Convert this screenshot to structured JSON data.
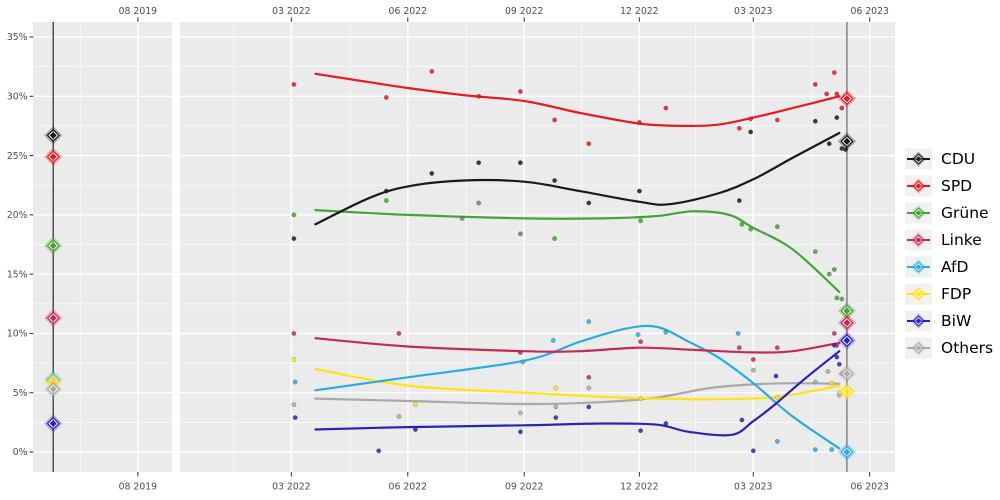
{
  "chart_data": {
    "type": "line",
    "title": "",
    "xlabel": "",
    "ylabel": "",
    "ylim": [
      0,
      35
    ],
    "grid": true,
    "legend_position": "right",
    "panels": [
      {
        "start": "2019-05-10",
        "end": "2019-08-28"
      },
      {
        "start": "2021-12-03",
        "end": "2023-06-21"
      }
    ],
    "x_axis": {
      "ticks": [
        {
          "label": "08 2019",
          "date": "2019-08-01"
        },
        {
          "label": "03 2022",
          "date": "2022-03-01"
        },
        {
          "label": "06 2022",
          "date": "2022-06-01"
        },
        {
          "label": "09 2022",
          "date": "2022-09-01"
        },
        {
          "label": "12 2022",
          "date": "2022-12-01"
        },
        {
          "label": "03 2023",
          "date": "2023-03-01"
        },
        {
          "label": "06 2023",
          "date": "2023-06-01"
        }
      ]
    },
    "y_axis": {
      "ticks": [
        {
          "label": "0%",
          "value": 0
        },
        {
          "label": "5%",
          "value": 5
        },
        {
          "label": "10%",
          "value": 10
        },
        {
          "label": "15%",
          "value": 15
        },
        {
          "label": "20%",
          "value": 20
        },
        {
          "label": "25%",
          "value": 25
        },
        {
          "label": "30%",
          "value": 30
        },
        {
          "label": "35%",
          "value": 35
        }
      ]
    },
    "elections": [
      {
        "name": "election-2019",
        "date": "2019-05-26",
        "results": [
          [
            "CDU",
            26.7
          ],
          [
            "SPD",
            24.9
          ],
          [
            "Grüne",
            17.4
          ],
          [
            "Linke",
            11.3
          ],
          [
            "AfD",
            6.1
          ],
          [
            "FDP",
            5.9
          ],
          [
            "Others",
            5.3
          ],
          [
            "BiW",
            2.4
          ]
        ]
      },
      {
        "name": "election-2023",
        "date": "2023-05-14",
        "results": [
          [
            "SPD",
            29.8
          ],
          [
            "CDU",
            26.2
          ],
          [
            "Grüne",
            11.9
          ],
          [
            "Linke",
            10.9
          ],
          [
            "BiW",
            9.4
          ],
          [
            "Others",
            6.6
          ],
          [
            "FDP",
            5.1
          ],
          [
            "AfD",
            0.0
          ]
        ]
      }
    ],
    "series": [
      {
        "name": "CDU",
        "color": "#1a1a1a",
        "line": [
          [
            "2022-03-20",
            19.2
          ],
          [
            "2022-05-01",
            21.4
          ],
          [
            "2022-06-01",
            22.4
          ],
          [
            "2022-07-15",
            22.9
          ],
          [
            "2022-09-01",
            22.8
          ],
          [
            "2022-10-15",
            22.0
          ],
          [
            "2022-12-01",
            21.1
          ],
          [
            "2022-12-25",
            20.9
          ],
          [
            "2023-02-01",
            21.8
          ],
          [
            "2023-03-01",
            23.0
          ],
          [
            "2023-04-01",
            24.8
          ],
          [
            "2023-05-08",
            26.9
          ]
        ],
        "points": [
          [
            "2022-03-03",
            18.0
          ],
          [
            "2022-05-15",
            22.0
          ],
          [
            "2022-06-20",
            23.5
          ],
          [
            "2022-07-27",
            24.4
          ],
          [
            "2022-08-29",
            24.4
          ],
          [
            "2022-09-25",
            22.9
          ],
          [
            "2022-10-22",
            21.0
          ],
          [
            "2022-12-01",
            22.0
          ],
          [
            "2023-02-18",
            21.2
          ],
          [
            "2023-02-27",
            27.0
          ],
          [
            "2023-04-19",
            27.9
          ],
          [
            "2023-04-30",
            26.0
          ],
          [
            "2023-05-06",
            28.2
          ],
          [
            "2023-05-10",
            25.6
          ],
          [
            "2023-05-13",
            25.5
          ]
        ]
      },
      {
        "name": "SPD",
        "color": "#e8191f",
        "line": [
          [
            "2022-03-20",
            31.9
          ],
          [
            "2022-05-01",
            31.2
          ],
          [
            "2022-06-01",
            30.7
          ],
          [
            "2022-07-15",
            30.1
          ],
          [
            "2022-09-01",
            29.6
          ],
          [
            "2022-10-15",
            28.6
          ],
          [
            "2022-12-01",
            27.7
          ],
          [
            "2023-01-05",
            27.5
          ],
          [
            "2023-02-01",
            27.6
          ],
          [
            "2023-03-01",
            28.2
          ],
          [
            "2023-04-01",
            29.0
          ],
          [
            "2023-05-08",
            30.0
          ]
        ],
        "points": [
          [
            "2022-03-03",
            31.0
          ],
          [
            "2022-05-15",
            29.9
          ],
          [
            "2022-06-20",
            32.1
          ],
          [
            "2022-07-27",
            30.0
          ],
          [
            "2022-08-29",
            30.4
          ],
          [
            "2022-09-25",
            28.0
          ],
          [
            "2022-10-22",
            26.0
          ],
          [
            "2022-12-01",
            27.8
          ],
          [
            "2022-12-22",
            29.0
          ],
          [
            "2023-02-18",
            27.3
          ],
          [
            "2023-02-27",
            28.1
          ],
          [
            "2023-03-20",
            28.0
          ],
          [
            "2023-04-19",
            31.0
          ],
          [
            "2023-04-28",
            30.2
          ],
          [
            "2023-05-04",
            32.0
          ],
          [
            "2023-05-06",
            30.2
          ],
          [
            "2023-05-10",
            29.0
          ]
        ]
      },
      {
        "name": "Grüne",
        "color": "#44a338",
        "line": [
          [
            "2022-03-20",
            20.4
          ],
          [
            "2022-06-01",
            20.0
          ],
          [
            "2022-09-01",
            19.7
          ],
          [
            "2022-11-01",
            19.7
          ],
          [
            "2022-12-15",
            19.9
          ],
          [
            "2023-01-12",
            20.3
          ],
          [
            "2023-02-10",
            20.0
          ],
          [
            "2023-03-01",
            18.9
          ],
          [
            "2023-04-01",
            17.1
          ],
          [
            "2023-05-08",
            13.5
          ]
        ],
        "points": [
          [
            "2022-03-03",
            20.0
          ],
          [
            "2022-05-15",
            21.2
          ],
          [
            "2022-07-14",
            19.7
          ],
          [
            "2022-07-27",
            21.0
          ],
          [
            "2022-08-29",
            18.4
          ],
          [
            "2022-09-25",
            18.0
          ],
          [
            "2022-12-02",
            19.5
          ],
          [
            "2023-02-20",
            19.2
          ],
          [
            "2023-02-27",
            18.8
          ],
          [
            "2023-03-20",
            19.0
          ],
          [
            "2023-04-19",
            16.9
          ],
          [
            "2023-04-30",
            15.0
          ],
          [
            "2023-05-04",
            15.4
          ],
          [
            "2023-05-06",
            13.0
          ],
          [
            "2023-05-10",
            12.9
          ]
        ]
      },
      {
        "name": "Linke",
        "color": "#c22a56",
        "line": [
          [
            "2022-03-20",
            9.6
          ],
          [
            "2022-06-01",
            8.9
          ],
          [
            "2022-09-01",
            8.5
          ],
          [
            "2022-10-15",
            8.5
          ],
          [
            "2022-12-01",
            8.8
          ],
          [
            "2023-01-15",
            8.6
          ],
          [
            "2023-03-01",
            8.4
          ],
          [
            "2023-04-01",
            8.5
          ],
          [
            "2023-05-08",
            9.2
          ]
        ],
        "points": [
          [
            "2022-03-03",
            10.0
          ],
          [
            "2022-05-25",
            10.0
          ],
          [
            "2022-08-29",
            8.4
          ],
          [
            "2022-10-22",
            6.3
          ],
          [
            "2022-12-02",
            9.3
          ],
          [
            "2023-02-18",
            8.8
          ],
          [
            "2023-03-01",
            7.8
          ],
          [
            "2023-03-20",
            8.8
          ],
          [
            "2023-05-04",
            10.0
          ],
          [
            "2023-05-06",
            9.0
          ]
        ]
      },
      {
        "name": "AfD",
        "color": "#29abe2",
        "line": [
          [
            "2022-03-20",
            5.2
          ],
          [
            "2022-06-01",
            6.3
          ],
          [
            "2022-09-01",
            7.7
          ],
          [
            "2022-10-15",
            9.3
          ],
          [
            "2022-11-20",
            10.4
          ],
          [
            "2022-12-15",
            10.55
          ],
          [
            "2023-01-09",
            9.3
          ],
          [
            "2023-02-01",
            8.0
          ],
          [
            "2023-03-01",
            5.8
          ],
          [
            "2023-04-01",
            3.0
          ],
          [
            "2023-05-08",
            0.3
          ]
        ],
        "points": [
          [
            "2022-03-04",
            5.9
          ],
          [
            "2022-08-31",
            7.6
          ],
          [
            "2022-09-24",
            9.4
          ],
          [
            "2022-10-22",
            11.0
          ],
          [
            "2022-11-30",
            9.9
          ],
          [
            "2022-12-22",
            10.1
          ],
          [
            "2023-02-17",
            10.0
          ],
          [
            "2023-03-20",
            0.9
          ],
          [
            "2023-04-19",
            0.2
          ],
          [
            "2023-05-02",
            0.2
          ]
        ]
      },
      {
        "name": "FDP",
        "color": "#ffe312",
        "line": [
          [
            "2022-03-20",
            7.0
          ],
          [
            "2022-06-01",
            5.6
          ],
          [
            "2022-09-01",
            5.0
          ],
          [
            "2022-11-01",
            4.65
          ],
          [
            "2022-12-15",
            4.5
          ],
          [
            "2023-02-01",
            4.45
          ],
          [
            "2023-03-15",
            4.6
          ],
          [
            "2023-04-15",
            5.1
          ],
          [
            "2023-05-08",
            5.6
          ]
        ],
        "points": [
          [
            "2022-03-03",
            7.8
          ],
          [
            "2022-06-07",
            4.0
          ],
          [
            "2022-09-26",
            5.4
          ],
          [
            "2022-12-02",
            4.5
          ],
          [
            "2023-03-20",
            4.6
          ],
          [
            "2023-05-02",
            5.8
          ],
          [
            "2023-05-08",
            5.0
          ]
        ]
      },
      {
        "name": "BiW",
        "color": "#2b22b5",
        "line": [
          [
            "2022-03-20",
            1.9
          ],
          [
            "2022-06-01",
            2.1
          ],
          [
            "2022-09-01",
            2.25
          ],
          [
            "2022-11-01",
            2.4
          ],
          [
            "2022-12-15",
            2.3
          ],
          [
            "2023-01-09",
            1.7
          ],
          [
            "2023-02-12",
            1.45
          ],
          [
            "2023-03-01",
            2.6
          ],
          [
            "2023-03-18",
            4.0
          ],
          [
            "2023-04-11",
            6.2
          ],
          [
            "2023-05-08",
            8.5
          ]
        ],
        "points": [
          [
            "2022-03-04",
            2.9
          ],
          [
            "2022-05-09",
            0.1
          ],
          [
            "2022-06-07",
            1.9
          ],
          [
            "2022-08-29",
            1.7
          ],
          [
            "2022-09-26",
            2.9
          ],
          [
            "2022-10-22",
            3.8
          ],
          [
            "2022-12-02",
            1.8
          ],
          [
            "2022-12-22",
            2.4
          ],
          [
            "2023-02-20",
            2.7
          ],
          [
            "2023-03-01",
            0.1
          ],
          [
            "2023-03-19",
            6.4
          ],
          [
            "2023-05-04",
            9.0
          ],
          [
            "2023-05-06",
            8.0
          ],
          [
            "2023-05-08",
            7.4
          ]
        ]
      },
      {
        "name": "Others",
        "color": "#a9a9a9",
        "line": [
          [
            "2022-03-20",
            4.5
          ],
          [
            "2022-06-01",
            4.3
          ],
          [
            "2022-09-01",
            4.05
          ],
          [
            "2022-11-01",
            4.2
          ],
          [
            "2022-12-15",
            4.6
          ],
          [
            "2023-01-26",
            5.4
          ],
          [
            "2023-03-01",
            5.7
          ],
          [
            "2023-04-01",
            5.8
          ],
          [
            "2023-05-08",
            5.75
          ]
        ],
        "points": [
          [
            "2022-03-03",
            4.0
          ],
          [
            "2022-05-25",
            3.0
          ],
          [
            "2022-08-29",
            3.3
          ],
          [
            "2022-09-26",
            3.8
          ],
          [
            "2022-10-22",
            5.4
          ],
          [
            "2023-03-01",
            6.9
          ],
          [
            "2023-04-19",
            5.9
          ],
          [
            "2023-04-29",
            6.8
          ],
          [
            "2023-05-08",
            4.8
          ],
          [
            "2023-05-10",
            6.6
          ]
        ]
      }
    ],
    "style": {
      "panel_bg": "#ebebeb",
      "gridline": "#ffffff",
      "axis_text": "#4d4d4d",
      "election_line_2019": "#454545",
      "election_line_2023": "#8a8a8a"
    }
  },
  "legend": {
    "items": [
      "CDU",
      "SPD",
      "Grüne",
      "Linke",
      "AfD",
      "FDP",
      "BiW",
      "Others"
    ]
  }
}
